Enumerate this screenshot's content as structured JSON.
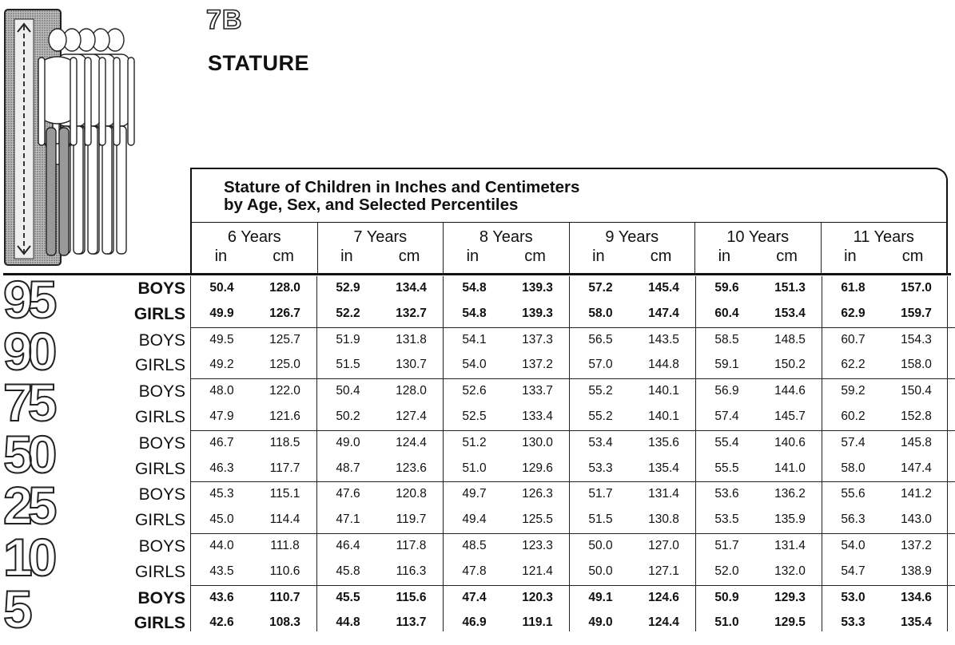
{
  "page_code": "7B",
  "page_title": "STATURE",
  "caption": {
    "line1": "Stature of Children in Inches and Centimeters",
    "line2": "by Age, Sex, and Selected Percentiles"
  },
  "ages": [
    "6 Years",
    "7 Years",
    "8 Years",
    "9 Years",
    "10 Years",
    "11 Years"
  ],
  "units": [
    "in",
    "cm"
  ],
  "groups": [
    {
      "percentile": "95",
      "rows": [
        {
          "sex": "BOYS",
          "values": [
            "50.4",
            "128.0",
            "52.9",
            "134.4",
            "54.8",
            "139.3",
            "57.2",
            "145.4",
            "59.6",
            "151.3",
            "61.8",
            "157.0"
          ]
        },
        {
          "sex": "GIRLS",
          "values": [
            "49.9",
            "126.7",
            "52.2",
            "132.7",
            "54.8",
            "139.3",
            "58.0",
            "147.4",
            "60.4",
            "153.4",
            "62.9",
            "159.7"
          ]
        }
      ]
    },
    {
      "percentile": "90",
      "rows": [
        {
          "sex": "BOYS",
          "values": [
            "49.5",
            "125.7",
            "51.9",
            "131.8",
            "54.1",
            "137.3",
            "56.5",
            "143.5",
            "58.5",
            "148.5",
            "60.7",
            "154.3"
          ]
        },
        {
          "sex": "GIRLS",
          "values": [
            "49.2",
            "125.0",
            "51.5",
            "130.7",
            "54.0",
            "137.2",
            "57.0",
            "144.8",
            "59.1",
            "150.2",
            "62.2",
            "158.0"
          ]
        }
      ]
    },
    {
      "percentile": "75",
      "rows": [
        {
          "sex": "BOYS",
          "values": [
            "48.0",
            "122.0",
            "50.4",
            "128.0",
            "52.6",
            "133.7",
            "55.2",
            "140.1",
            "56.9",
            "144.6",
            "59.2",
            "150.4"
          ]
        },
        {
          "sex": "GIRLS",
          "values": [
            "47.9",
            "121.6",
            "50.2",
            "127.4",
            "52.5",
            "133.4",
            "55.2",
            "140.1",
            "57.4",
            "145.7",
            "60.2",
            "152.8"
          ]
        }
      ]
    },
    {
      "percentile": "50",
      "rows": [
        {
          "sex": "BOYS",
          "values": [
            "46.7",
            "118.5",
            "49.0",
            "124.4",
            "51.2",
            "130.0",
            "53.4",
            "135.6",
            "55.4",
            "140.6",
            "57.4",
            "145.8"
          ]
        },
        {
          "sex": "GIRLS",
          "values": [
            "46.3",
            "117.7",
            "48.7",
            "123.6",
            "51.0",
            "129.6",
            "53.3",
            "135.4",
            "55.5",
            "141.0",
            "58.0",
            "147.4"
          ]
        }
      ]
    },
    {
      "percentile": "25",
      "rows": [
        {
          "sex": "BOYS",
          "values": [
            "45.3",
            "115.1",
            "47.6",
            "120.8",
            "49.7",
            "126.3",
            "51.7",
            "131.4",
            "53.6",
            "136.2",
            "55.6",
            "141.2"
          ]
        },
        {
          "sex": "GIRLS",
          "values": [
            "45.0",
            "114.4",
            "47.1",
            "119.7",
            "49.4",
            "125.5",
            "51.5",
            "130.8",
            "53.5",
            "135.9",
            "56.3",
            "143.0"
          ]
        }
      ]
    },
    {
      "percentile": "10",
      "rows": [
        {
          "sex": "BOYS",
          "values": [
            "44.0",
            "111.8",
            "46.4",
            "117.8",
            "48.5",
            "123.3",
            "50.0",
            "127.0",
            "51.7",
            "131.4",
            "54.0",
            "137.2"
          ]
        },
        {
          "sex": "GIRLS",
          "values": [
            "43.5",
            "110.6",
            "45.8",
            "116.3",
            "47.8",
            "121.4",
            "50.0",
            "127.1",
            "52.0",
            "132.0",
            "54.7",
            "138.9"
          ]
        }
      ]
    },
    {
      "percentile": "5",
      "rows": [
        {
          "sex": "BOYS",
          "values": [
            "43.6",
            "110.7",
            "45.5",
            "115.6",
            "47.4",
            "120.3",
            "49.1",
            "124.6",
            "50.9",
            "129.3",
            "53.0",
            "134.6"
          ]
        },
        {
          "sex": "GIRLS",
          "values": [
            "42.6",
            "108.3",
            "44.8",
            "113.7",
            "46.9",
            "119.1",
            "49.0",
            "124.4",
            "51.0",
            "129.5",
            "53.3",
            "135.4"
          ]
        }
      ]
    }
  ],
  "bold_percentiles": [
    "95",
    "5"
  ],
  "figure_icon": "stature-figure-icon"
}
